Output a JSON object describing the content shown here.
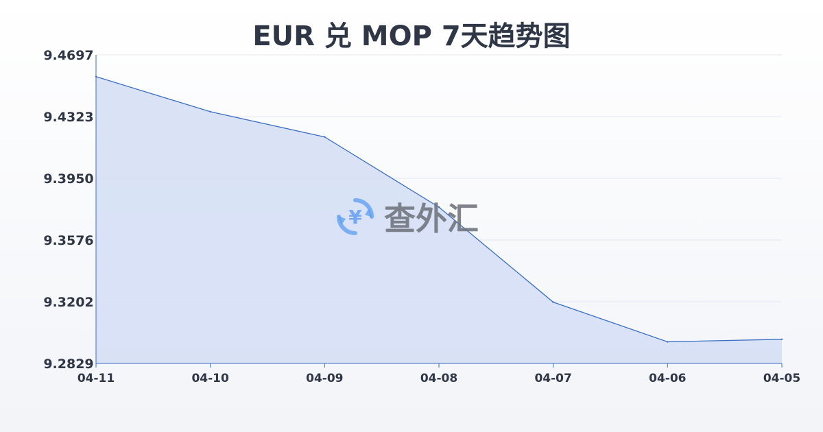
{
  "chart_data": {
    "type": "area",
    "title": "EUR 兑 MOP 7天趋势图",
    "xlabel": "",
    "ylabel": "",
    "categories": [
      "04-11",
      "04-10",
      "04-09",
      "04-08",
      "04-07",
      "04-06",
      "04-05"
    ],
    "values": [
      9.4565,
      9.4353,
      9.42,
      9.3775,
      9.32,
      9.296,
      9.2975
    ],
    "ylim": [
      9.2829,
      9.4697
    ],
    "yticks": [
      "9.4697",
      "9.4323",
      "9.3950",
      "9.3576",
      "9.3202",
      "9.2829"
    ],
    "grid": true,
    "legend": "none",
    "colors": {
      "line": "#3a6fc4",
      "fill": "#d3def4",
      "axis": "#3a6fc4",
      "grid": "#e3e7ee"
    }
  },
  "watermark": {
    "icon": "yen-exchange-icon",
    "text": "查外汇",
    "color": "#5b9cf0"
  }
}
